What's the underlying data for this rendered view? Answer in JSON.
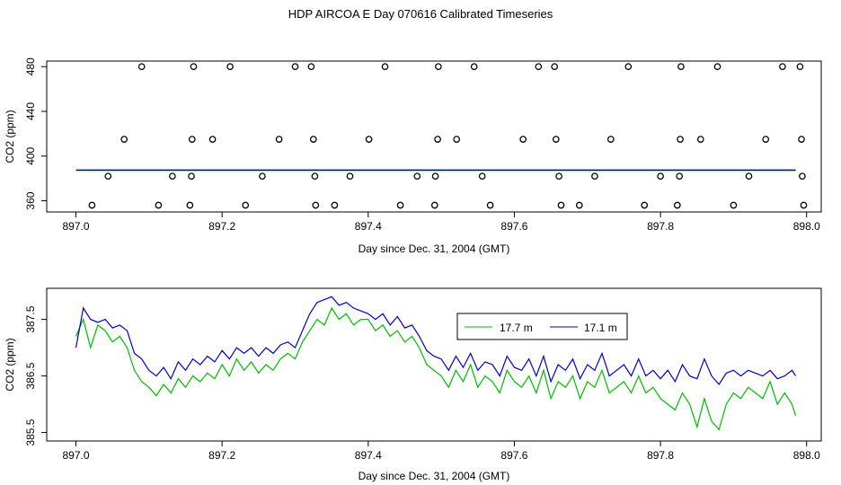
{
  "title": "HDP AIRCOA E  Day 070616  Calibrated Timeseries",
  "chart_data": [
    {
      "type": "scatter",
      "xlabel": "Day since Dec. 31, 2004 (GMT)",
      "ylabel": "CO2 (ppm)",
      "xlim": [
        896.96,
        898.02
      ],
      "ylim": [
        350,
        485
      ],
      "xticks": [
        897.0,
        897.2,
        897.4,
        897.6,
        897.8,
        898.0
      ],
      "xtick_labels": [
        "897.0",
        "897.2",
        "897.4",
        "897.6",
        "897.8",
        "898.0"
      ],
      "yticks": [
        360,
        400,
        440,
        480
      ],
      "ytick_labels": [
        "360",
        "400",
        "440",
        "480"
      ],
      "series": [
        {
          "name": "points",
          "color": "#000000",
          "marker": "open-circle",
          "x": [
            897.09,
            897.161,
            897.211,
            897.3,
            897.322,
            897.423,
            897.496,
            897.545,
            897.633,
            897.655,
            897.756,
            897.828,
            897.878,
            897.967,
            897.991,
            897.066,
            897.159,
            897.187,
            897.278,
            897.325,
            897.401,
            897.495,
            897.521,
            897.612,
            897.657,
            897.732,
            897.827,
            897.855,
            897.944,
            897.993,
            897.044,
            897.132,
            897.158,
            897.255,
            897.327,
            897.375,
            897.467,
            897.492,
            897.556,
            897.661,
            897.71,
            897.8,
            897.826,
            897.921,
            897.994,
            897.022,
            897.113,
            897.156,
            897.232,
            897.328,
            897.354,
            897.444,
            897.491,
            897.567,
            897.664,
            897.689,
            897.778,
            897.823,
            897.9,
            897.996
          ],
          "y": [
            480,
            480,
            480,
            480,
            480,
            480,
            480,
            480,
            480,
            480,
            480,
            480,
            480,
            480,
            480,
            415,
            415,
            415,
            415,
            415,
            415,
            415,
            415,
            415,
            415,
            415,
            415,
            415,
            415,
            415,
            382,
            382,
            382,
            382,
            382,
            382,
            382,
            382,
            382,
            382,
            382,
            382,
            382,
            382,
            382,
            356,
            356,
            356,
            356,
            356,
            356,
            356,
            356,
            356,
            356,
            356,
            356,
            356,
            356,
            356
          ]
        },
        {
          "name": "17.7 m",
          "color": "#00bb00",
          "x_start": 897.0,
          "x_end": 897.985,
          "y_level": 387.2
        },
        {
          "name": "17.1 m",
          "color": "#0000cc",
          "x_start": 897.0,
          "x_end": 897.985,
          "y_level": 387.5
        }
      ]
    },
    {
      "type": "line",
      "xlabel": "Day since Dec. 31, 2004 (GMT)",
      "ylabel": "CO2 (ppm)",
      "xlim": [
        896.96,
        898.02
      ],
      "ylim": [
        385.35,
        388.05
      ],
      "xticks": [
        897.0,
        897.2,
        897.4,
        897.6,
        897.8,
        898.0
      ],
      "xtick_labels": [
        "897.0",
        "897.2",
        "897.4",
        "897.6",
        "897.8",
        "898.0"
      ],
      "yticks": [
        385.5,
        386.5,
        387.5
      ],
      "ytick_labels": [
        "385.5",
        "386.5",
        "387.5"
      ],
      "legend": {
        "position": "top-right",
        "entries": [
          "17.7 m",
          "17.1 m"
        ]
      },
      "series": [
        {
          "name": "17.7 m",
          "color": "#00bb00",
          "x": [
            897.0,
            897.01,
            897.02,
            897.03,
            897.04,
            897.05,
            897.06,
            897.07,
            897.08,
            897.09,
            897.1,
            897.11,
            897.12,
            897.13,
            897.14,
            897.15,
            897.16,
            897.17,
            897.18,
            897.19,
            897.2,
            897.21,
            897.22,
            897.23,
            897.24,
            897.25,
            897.26,
            897.27,
            897.28,
            897.29,
            897.3,
            897.31,
            897.32,
            897.33,
            897.34,
            897.35,
            897.36,
            897.37,
            897.38,
            897.39,
            897.4,
            897.41,
            897.42,
            897.43,
            897.44,
            897.45,
            897.46,
            897.47,
            897.48,
            897.49,
            897.5,
            897.51,
            897.52,
            897.53,
            897.54,
            897.55,
            897.56,
            897.57,
            897.58,
            897.59,
            897.6,
            897.61,
            897.62,
            897.63,
            897.64,
            897.65,
            897.66,
            897.67,
            897.68,
            897.69,
            897.7,
            897.71,
            897.72,
            897.73,
            897.74,
            897.75,
            897.76,
            897.77,
            897.78,
            897.79,
            897.8,
            897.81,
            897.82,
            897.83,
            897.84,
            897.85,
            897.86,
            897.87,
            897.88,
            897.89,
            897.9,
            897.91,
            897.92,
            897.93,
            897.94,
            897.95,
            897.96,
            897.97,
            897.98,
            897.985
          ],
          "y": [
            387.2,
            387.5,
            387.0,
            387.4,
            387.3,
            387.1,
            387.2,
            387.0,
            386.6,
            386.4,
            386.3,
            386.15,
            386.35,
            386.2,
            386.45,
            386.3,
            386.5,
            386.4,
            386.55,
            386.45,
            386.7,
            386.5,
            386.8,
            386.6,
            386.75,
            386.55,
            386.7,
            386.6,
            386.8,
            386.9,
            386.8,
            387.1,
            387.3,
            387.5,
            387.4,
            387.7,
            387.5,
            387.6,
            387.4,
            387.5,
            387.5,
            387.3,
            387.4,
            387.2,
            387.3,
            387.1,
            387.2,
            387.0,
            386.7,
            386.6,
            386.5,
            386.3,
            386.6,
            386.4,
            386.7,
            386.3,
            386.5,
            386.4,
            386.2,
            386.6,
            386.4,
            386.3,
            386.5,
            386.2,
            386.6,
            386.1,
            386.4,
            386.3,
            386.5,
            386.1,
            386.4,
            386.3,
            386.6,
            386.2,
            386.3,
            386.4,
            386.2,
            386.5,
            386.2,
            386.3,
            386.1,
            386.0,
            385.9,
            386.2,
            386.0,
            385.6,
            386.1,
            385.7,
            385.55,
            386.0,
            386.2,
            386.1,
            386.3,
            386.2,
            386.1,
            386.4,
            386.0,
            386.2,
            386.0,
            385.8
          ]
        },
        {
          "name": "17.1 m",
          "color": "#0000cc",
          "x": [
            897.0,
            897.01,
            897.02,
            897.03,
            897.04,
            897.05,
            897.06,
            897.07,
            897.08,
            897.09,
            897.1,
            897.11,
            897.12,
            897.13,
            897.14,
            897.15,
            897.16,
            897.17,
            897.18,
            897.19,
            897.2,
            897.21,
            897.22,
            897.23,
            897.24,
            897.25,
            897.26,
            897.27,
            897.28,
            897.29,
            897.3,
            897.31,
            897.32,
            897.33,
            897.34,
            897.35,
            897.36,
            897.37,
            897.38,
            897.39,
            897.4,
            897.41,
            897.42,
            897.43,
            897.44,
            897.45,
            897.46,
            897.47,
            897.48,
            897.49,
            897.5,
            897.51,
            897.52,
            897.53,
            897.54,
            897.55,
            897.56,
            897.57,
            897.58,
            897.59,
            897.6,
            897.61,
            897.62,
            897.63,
            897.64,
            897.65,
            897.66,
            897.67,
            897.68,
            897.69,
            897.7,
            897.71,
            897.72,
            897.73,
            897.74,
            897.75,
            897.76,
            897.77,
            897.78,
            897.79,
            897.8,
            897.81,
            897.82,
            897.83,
            897.84,
            897.85,
            897.86,
            897.87,
            897.88,
            897.89,
            897.9,
            897.91,
            897.92,
            897.93,
            897.94,
            897.95,
            897.96,
            897.97,
            897.98,
            897.985
          ],
          "y": [
            387.0,
            387.7,
            387.5,
            387.45,
            387.5,
            387.35,
            387.4,
            387.3,
            386.9,
            386.8,
            386.6,
            386.5,
            386.65,
            386.45,
            386.75,
            386.6,
            386.8,
            386.7,
            386.85,
            386.75,
            386.95,
            386.8,
            387.0,
            386.9,
            387.0,
            386.85,
            387.0,
            386.9,
            387.05,
            387.1,
            387.0,
            387.3,
            387.6,
            387.8,
            387.85,
            387.9,
            387.75,
            387.8,
            387.7,
            387.65,
            387.6,
            387.5,
            387.6,
            387.4,
            387.55,
            387.35,
            387.4,
            387.2,
            386.95,
            386.85,
            386.8,
            386.6,
            386.85,
            386.65,
            386.9,
            386.6,
            386.75,
            386.7,
            386.5,
            386.85,
            386.65,
            386.6,
            386.8,
            386.5,
            386.85,
            386.4,
            386.7,
            386.6,
            386.8,
            386.45,
            386.7,
            386.6,
            386.9,
            386.5,
            386.6,
            386.7,
            386.5,
            386.8,
            386.5,
            386.6,
            386.45,
            386.6,
            386.4,
            386.7,
            386.5,
            386.45,
            386.8,
            386.5,
            386.35,
            386.55,
            386.6,
            386.5,
            386.6,
            386.55,
            386.5,
            386.6,
            386.45,
            386.5,
            386.6,
            386.5
          ]
        }
      ]
    }
  ]
}
